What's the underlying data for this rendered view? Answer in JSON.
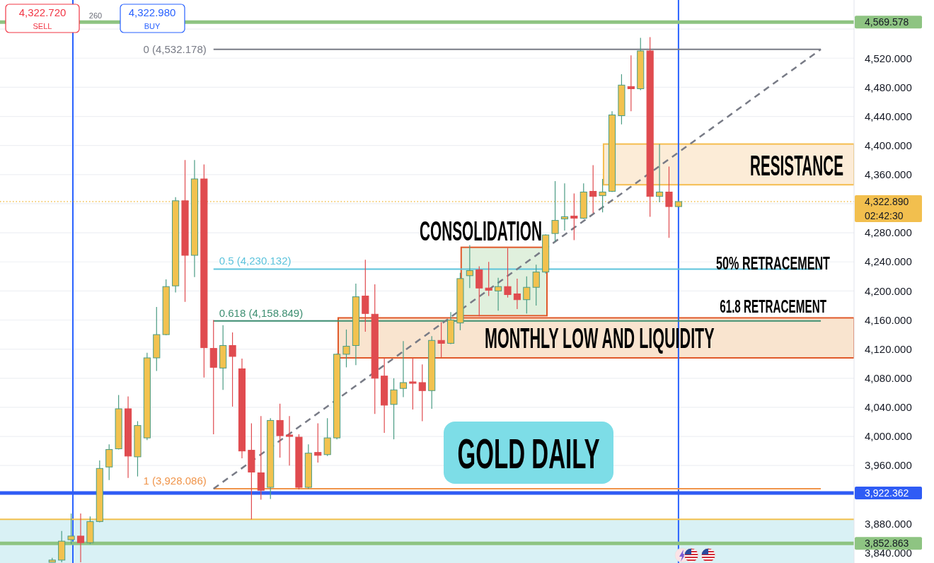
{
  "chart_data": {
    "type": "candlestick",
    "title": "GOLD DAILY",
    "categories": [
      null,
      null,
      null,
      null,
      null,
      null,
      null,
      null,
      null,
      null,
      null,
      null,
      null,
      null,
      null,
      null,
      null,
      null,
      null,
      null,
      null,
      null,
      null,
      null,
      null,
      null,
      null,
      null,
      null,
      null,
      null,
      null,
      null,
      null,
      null,
      null,
      null,
      null,
      null,
      null,
      null,
      null,
      null,
      null,
      null,
      null,
      null,
      null,
      null,
      null,
      null,
      null,
      null,
      null,
      null,
      null,
      null,
      null,
      null,
      null,
      null,
      null,
      null,
      null,
      null,
      null,
      null,
      null,
      null,
      null,
      null,
      null,
      null,
      null,
      null,
      null,
      null,
      null,
      null,
      null,
      null,
      null,
      null,
      null,
      null,
      null,
      null,
      null,
      null,
      null
    ],
    "ohlc": [
      null,
      null,
      null,
      null,
      null,
      [
        3827,
        3833,
        3827,
        3830
      ],
      [
        3830,
        3870,
        3827,
        3856
      ],
      [
        3858,
        3894,
        3852,
        3863
      ],
      [
        3863,
        3894,
        3827,
        3854
      ],
      [
        3854,
        3890,
        3852,
        3883
      ],
      [
        3883,
        3967,
        3882,
        3956
      ],
      [
        3958,
        3989,
        3940,
        3982
      ],
      [
        3983,
        4057,
        3982,
        4038
      ],
      [
        4038,
        4055,
        3943,
        3973
      ],
      [
        3972,
        4021,
        3945,
        4015
      ],
      [
        3998,
        4115,
        3995,
        4108
      ],
      [
        4108,
        4178,
        4090,
        4140
      ],
      [
        4140,
        4216,
        4139,
        4206
      ],
      [
        4207,
        4329,
        4198,
        4324
      ],
      [
        4324,
        4380,
        4185,
        4249
      ],
      [
        4249,
        4380,
        4219,
        4354
      ],
      [
        4354,
        4374,
        4081,
        4122
      ],
      [
        4121,
        4160,
        4003,
        4095
      ],
      [
        4094,
        4153,
        4064,
        4125
      ],
      [
        4125,
        4143,
        4041,
        4110
      ],
      [
        4093,
        4107,
        3970,
        3980
      ],
      [
        3981,
        4018,
        3886,
        3951
      ],
      [
        3950,
        4028,
        3913,
        3926
      ],
      [
        3930,
        4025,
        3914,
        4022
      ],
      [
        4022,
        4045,
        3971,
        4001
      ],
      [
        4002,
        4028,
        3960,
        4000
      ],
      [
        3999,
        4003,
        3927,
        3930
      ],
      [
        3930,
        3989,
        3928,
        3977
      ],
      [
        3978,
        4018,
        3964,
        3974
      ],
      [
        3975,
        4025,
        3973,
        3998
      ],
      [
        3998,
        4114,
        3996,
        4113
      ],
      [
        4113,
        4147,
        4095,
        4124
      ],
      [
        4125,
        4210,
        4098,
        4192
      ],
      [
        4193,
        4243,
        4144,
        4169
      ],
      [
        4168,
        4209,
        4031,
        4080
      ],
      [
        4083,
        4108,
        4005,
        4043
      ],
      [
        4044,
        4080,
        3996,
        4064
      ],
      [
        4066,
        4131,
        4054,
        4074
      ],
      [
        4075,
        4108,
        4037,
        4073
      ],
      [
        4074,
        4099,
        4021,
        4063
      ],
      [
        4063,
        4138,
        4038,
        4132
      ],
      [
        4132,
        4157,
        4109,
        4128
      ],
      [
        4128,
        4171,
        4127,
        4160
      ],
      [
        4156,
        4225,
        4146,
        4217
      ],
      [
        4221,
        4263,
        4204,
        4228
      ],
      [
        4229,
        4234,
        4165,
        4204
      ],
      [
        4204,
        4240,
        4193,
        4201
      ],
      [
        4200,
        4218,
        4173,
        4206
      ],
      [
        4206,
        4259,
        4191,
        4195
      ],
      [
        4196,
        4217,
        4175,
        4188
      ],
      [
        4188,
        4220,
        4169,
        4205
      ],
      [
        4205,
        4236,
        4180,
        4226
      ],
      [
        4226,
        4278,
        4224,
        4277
      ],
      [
        4279,
        4351,
        4268,
        4297
      ],
      [
        4299,
        4348,
        4283,
        4302
      ],
      [
        4303,
        4334,
        4270,
        4300
      ],
      [
        4300,
        4348,
        4299,
        4336
      ],
      [
        4337,
        4373,
        4307,
        4330
      ],
      [
        4331,
        4354,
        4308,
        4336
      ],
      [
        4337,
        4447,
        4336,
        4442
      ],
      [
        4441,
        4498,
        4429,
        4483
      ],
      [
        4481,
        4524,
        4447,
        4478
      ],
      [
        4478,
        4548,
        4476,
        4530
      ],
      [
        4530,
        4549,
        4302,
        4330
      ],
      [
        4330,
        4402,
        4322,
        4336
      ],
      [
        4336,
        4371,
        4273,
        4316
      ],
      [
        4316,
        4323,
        4315,
        4322.89
      ],
      null,
      null,
      null,
      null,
      null,
      null,
      null,
      null,
      null,
      null,
      null,
      null,
      null,
      null,
      null,
      null,
      null,
      null
    ],
    "series": [
      {
        "type": "line",
        "color": "#787b86",
        "line_style": "dashed",
        "values": [
          null,
          null,
          null,
          null,
          null,
          null,
          null,
          null,
          null,
          null,
          null,
          null,
          null,
          null,
          null,
          null,
          null,
          null,
          null,
          null,
          null,
          null,
          3928.086,
          null,
          null,
          null,
          null,
          null,
          null,
          null,
          null,
          null,
          null,
          null,
          null,
          null,
          null,
          null,
          null,
          null,
          null,
          null,
          null,
          null,
          null,
          null,
          null,
          null,
          null,
          null,
          null,
          null,
          null,
          null,
          null,
          null,
          null,
          null,
          null,
          null,
          null,
          null,
          null,
          null,
          null,
          null,
          null,
          null,
          null,
          null,
          null,
          null,
          null,
          null,
          null,
          null,
          null,
          null,
          null,
          null,
          null,
          null,
          null,
          null,
          null,
          null,
          4532.178,
          null,
          null,
          null
        ]
      }
    ],
    "ylim": [
      3826,
      4600
    ],
    "yticks": [
      {
        "value": 3840,
        "label": "3,840.000"
      },
      {
        "value": 3880,
        "label": "3,880.000"
      },
      {
        "value": 3920,
        "label": null
      },
      {
        "value": 3960,
        "label": "3,960.000"
      },
      {
        "value": 4000,
        "label": "4,000.000"
      },
      {
        "value": 4040,
        "label": "4,040.000"
      },
      {
        "value": 4080,
        "label": "4,080.000"
      },
      {
        "value": 4120,
        "label": "4,120.000"
      },
      {
        "value": 4160,
        "label": "4,160.000"
      },
      {
        "value": 4200,
        "label": "4,200.000"
      },
      {
        "value": 4240,
        "label": "4,240.000"
      },
      {
        "value": 4280,
        "label": "4,280.000"
      },
      {
        "value": 4320,
        "label": null
      },
      {
        "value": 4360,
        "label": "4,360.000"
      },
      {
        "value": 4400,
        "label": "4,400.000"
      },
      {
        "value": 4440,
        "label": "4,440.000"
      },
      {
        "value": 4480,
        "label": "4,480.000"
      },
      {
        "value": 4520,
        "label": "4,520.000"
      },
      {
        "value": 4560,
        "label": null
      }
    ],
    "tick_labels": "y",
    "grid": "y",
    "ref_lines": [
      {
        "axis": "y",
        "value": 4569.578,
        "label": "4,569.578",
        "color": "#8ec482"
      },
      {
        "axis": "y",
        "value": 4532.178,
        "label": "0 (4,532.178)",
        "color": "#787b86"
      },
      {
        "axis": "y",
        "value": 4322.89,
        "label": "4,322.890",
        "color": "#f2bf4e",
        "line_style": "dotted"
      },
      {
        "axis": "y",
        "value": 4230.132,
        "label": "0.5 (4,230.132)",
        "color": "#5cc3dc"
      },
      {
        "axis": "y",
        "value": 4158.849,
        "label": "0.618 (4,158.849)",
        "color": "#3e8f72"
      },
      {
        "axis": "y",
        "value": 3928.086,
        "label": "1 (3,928.086)",
        "color": "#f0954b"
      },
      {
        "axis": "y",
        "value": 3922.362,
        "label": "3,922.362",
        "color": "#2f5cf5"
      },
      {
        "axis": "y",
        "value": 3852.863,
        "label": "3,852.863",
        "color": "#8ec482"
      },
      {
        "axis": "y",
        "value": 3886,
        "color": "#f2c14e"
      }
    ],
    "bands": [
      {
        "axis": "y",
        "from": 4346,
        "to": 4402,
        "label": "RESISTANCE",
        "color": "#fcecd7"
      },
      {
        "axis": "y",
        "from": 4108,
        "to": 4163,
        "label": "MONTHLY LOW AND LIQUIDITY",
        "color": "#f9e4cf"
      },
      {
        "axis": "y",
        "from": 4166,
        "to": 4260,
        "label": "CONSOLIDATION",
        "color": "#e0f0dd"
      },
      {
        "axis": "y",
        "from": 3826,
        "to": 3886,
        "color": "#d9f1f5"
      }
    ],
    "annotations": [
      "4,322.720",
      "SELL",
      "260",
      "4,322.980",
      "BUY",
      "02:42:30",
      "50% RETRACEMENT",
      "61.8 RETRACEMENT"
    ]
  }
}
